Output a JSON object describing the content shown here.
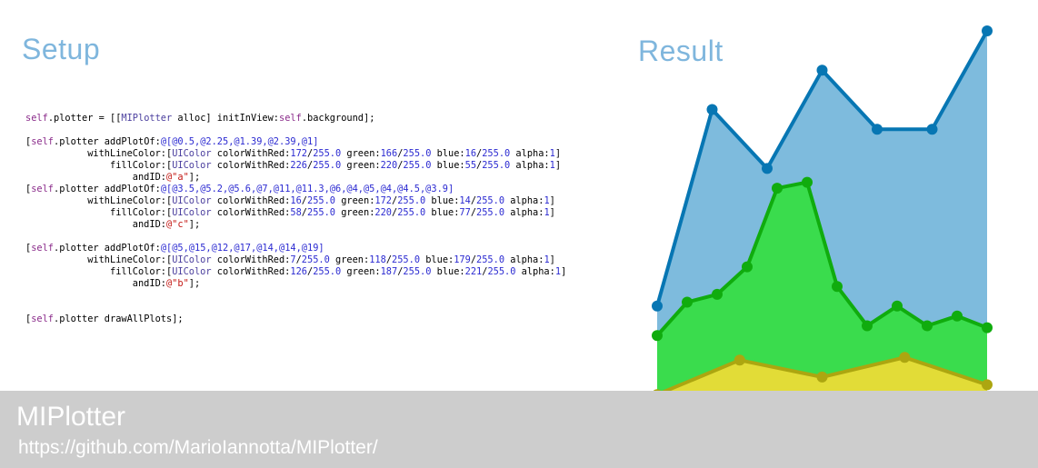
{
  "setup": {
    "title": "Setup"
  },
  "result": {
    "title": "Result"
  },
  "footer": {
    "title": "MIPlotter",
    "url": "https://github.com/MarioIannotta/MIPlotter/"
  },
  "code_lines": [
    [
      [
        "kw",
        "self"
      ],
      [
        "t",
        ".plotter = [["
      ],
      [
        "cls",
        "MIPlotter"
      ],
      [
        "t",
        " alloc] initInView:"
      ],
      [
        "kw",
        "self"
      ],
      [
        "t",
        ".background];"
      ]
    ],
    [],
    [
      [
        "t",
        "["
      ],
      [
        "kw",
        "self"
      ],
      [
        "t",
        ".plotter addPlotOf:"
      ],
      [
        "num",
        "@[@0.5,@2.25,@1.39,@2.39,@1]"
      ]
    ],
    [
      [
        "t",
        "           withLineColor:["
      ],
      [
        "cls",
        "UIColor"
      ],
      [
        "t",
        " colorWithRed:"
      ],
      [
        "num",
        "172"
      ],
      [
        "t",
        "/"
      ],
      [
        "num",
        "255.0"
      ],
      [
        "t",
        " green:"
      ],
      [
        "num",
        "166"
      ],
      [
        "t",
        "/"
      ],
      [
        "num",
        "255.0"
      ],
      [
        "t",
        " blue:"
      ],
      [
        "num",
        "16"
      ],
      [
        "t",
        "/"
      ],
      [
        "num",
        "255.0"
      ],
      [
        "t",
        " alpha:"
      ],
      [
        "num",
        "1"
      ],
      [
        "t",
        "]"
      ]
    ],
    [
      [
        "t",
        "               fillColor:["
      ],
      [
        "cls",
        "UIColor"
      ],
      [
        "t",
        " colorWithRed:"
      ],
      [
        "num",
        "226"
      ],
      [
        "t",
        "/"
      ],
      [
        "num",
        "255.0"
      ],
      [
        "t",
        " green:"
      ],
      [
        "num",
        "220"
      ],
      [
        "t",
        "/"
      ],
      [
        "num",
        "255.0"
      ],
      [
        "t",
        " blue:"
      ],
      [
        "num",
        "55"
      ],
      [
        "t",
        "/"
      ],
      [
        "num",
        "255.0"
      ],
      [
        "t",
        " alpha:"
      ],
      [
        "num",
        "1"
      ],
      [
        "t",
        "]"
      ]
    ],
    [
      [
        "t",
        "                   andID:"
      ],
      [
        "str",
        "@\"a\""
      ],
      [
        "t",
        "];"
      ]
    ],
    [
      [
        "t",
        "["
      ],
      [
        "kw",
        "self"
      ],
      [
        "t",
        ".plotter addPlotOf:"
      ],
      [
        "num",
        "@[@3.5,@5.2,@5.6,@7,@11,@11.3,@6,@4,@5,@4,@4.5,@3.9]"
      ]
    ],
    [
      [
        "t",
        "           withLineColor:["
      ],
      [
        "cls",
        "UIColor"
      ],
      [
        "t",
        " colorWithRed:"
      ],
      [
        "num",
        "16"
      ],
      [
        "t",
        "/"
      ],
      [
        "num",
        "255.0"
      ],
      [
        "t",
        " green:"
      ],
      [
        "num",
        "172"
      ],
      [
        "t",
        "/"
      ],
      [
        "num",
        "255.0"
      ],
      [
        "t",
        " blue:"
      ],
      [
        "num",
        "14"
      ],
      [
        "t",
        "/"
      ],
      [
        "num",
        "255.0"
      ],
      [
        "t",
        " alpha:"
      ],
      [
        "num",
        "1"
      ],
      [
        "t",
        "]"
      ]
    ],
    [
      [
        "t",
        "               fillColor:["
      ],
      [
        "cls",
        "UIColor"
      ],
      [
        "t",
        " colorWithRed:"
      ],
      [
        "num",
        "58"
      ],
      [
        "t",
        "/"
      ],
      [
        "num",
        "255.0"
      ],
      [
        "t",
        " green:"
      ],
      [
        "num",
        "220"
      ],
      [
        "t",
        "/"
      ],
      [
        "num",
        "255.0"
      ],
      [
        "t",
        " blue:"
      ],
      [
        "num",
        "77"
      ],
      [
        "t",
        "/"
      ],
      [
        "num",
        "255.0"
      ],
      [
        "t",
        " alpha:"
      ],
      [
        "num",
        "1"
      ],
      [
        "t",
        "]"
      ]
    ],
    [
      [
        "t",
        "                   andID:"
      ],
      [
        "str",
        "@\"c\""
      ],
      [
        "t",
        "];"
      ]
    ],
    [],
    [
      [
        "t",
        "["
      ],
      [
        "kw",
        "self"
      ],
      [
        "t",
        ".plotter addPlotOf:"
      ],
      [
        "num",
        "@[@5,@15,@12,@17,@14,@14,@19]"
      ]
    ],
    [
      [
        "t",
        "           withLineColor:["
      ],
      [
        "cls",
        "UIColor"
      ],
      [
        "t",
        " colorWithRed:"
      ],
      [
        "num",
        "7"
      ],
      [
        "t",
        "/"
      ],
      [
        "num",
        "255.0"
      ],
      [
        "t",
        " green:"
      ],
      [
        "num",
        "118"
      ],
      [
        "t",
        "/"
      ],
      [
        "num",
        "255.0"
      ],
      [
        "t",
        " blue:"
      ],
      [
        "num",
        "179"
      ],
      [
        "t",
        "/"
      ],
      [
        "num",
        "255.0"
      ],
      [
        "t",
        " alpha:"
      ],
      [
        "num",
        "1"
      ],
      [
        "t",
        "]"
      ]
    ],
    [
      [
        "t",
        "               fillColor:["
      ],
      [
        "cls",
        "UIColor"
      ],
      [
        "t",
        " colorWithRed:"
      ],
      [
        "num",
        "126"
      ],
      [
        "t",
        "/"
      ],
      [
        "num",
        "255.0"
      ],
      [
        "t",
        " green:"
      ],
      [
        "num",
        "187"
      ],
      [
        "t",
        "/"
      ],
      [
        "num",
        "255.0"
      ],
      [
        "t",
        " blue:"
      ],
      [
        "num",
        "221"
      ],
      [
        "t",
        "/"
      ],
      [
        "num",
        "255.0"
      ],
      [
        "t",
        " alpha:"
      ],
      [
        "num",
        "1"
      ],
      [
        "t",
        "]"
      ]
    ],
    [
      [
        "t",
        "                   andID:"
      ],
      [
        "str",
        "@\"b\""
      ],
      [
        "t",
        "];"
      ]
    ],
    [],
    [],
    [
      [
        "t",
        "["
      ],
      [
        "kw",
        "self"
      ],
      [
        "t",
        ".plotter drawAllPlots];"
      ]
    ]
  ],
  "chart_data": {
    "type": "area",
    "series": [
      {
        "values": [
          5,
          15,
          12,
          17,
          14,
          14,
          19
        ],
        "line_color": "#0776b3",
        "fill_color": "#7ebbdd"
      },
      {
        "values": [
          3.5,
          5.2,
          5.6,
          7,
          11,
          11.3,
          6,
          4,
          5,
          4,
          4.5,
          3.9
        ],
        "line_color": "#10ac0e",
        "fill_color": "#3adc4d"
      },
      {
        "values": [
          0.5,
          2.25,
          1.39,
          2.39,
          1
        ],
        "line_color": "#aca610",
        "fill_color": "#e2dc37"
      }
    ]
  },
  "colors": {
    "heading": "#7fb6dd",
    "footer_bg": "#cdcdcd"
  }
}
